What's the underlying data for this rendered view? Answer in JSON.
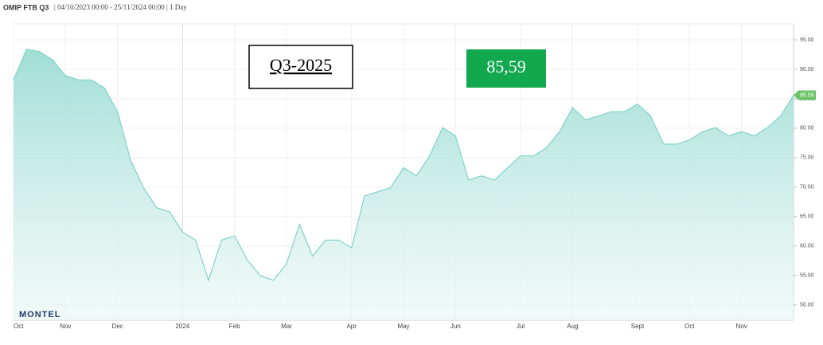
{
  "chart_data": {
    "type": "area",
    "title": "OMIP FTB Q3",
    "subtitle": "| 04/10/2023 00:00 - 25/11/2024 00:00 | 1 Day",
    "annotations": [
      "Q3-2025",
      "85,59"
    ],
    "logo": "MONTEL",
    "categories": [
      "Oct",
      null,
      null,
      null,
      "Nov",
      null,
      null,
      null,
      "Dec",
      null,
      null,
      null,
      null,
      "2024",
      null,
      null,
      null,
      "Feb",
      null,
      null,
      null,
      "Mar",
      null,
      null,
      null,
      null,
      "Apr",
      null,
      null,
      null,
      "May",
      null,
      null,
      null,
      "Jun",
      null,
      null,
      null,
      null,
      "Jul",
      null,
      null,
      null,
      "Aug",
      null,
      null,
      null,
      null,
      "Sept",
      null,
      null,
      null,
      "Oct",
      null,
      null,
      null,
      "Nov",
      null,
      null,
      null,
      null
    ],
    "series": [
      {
        "color": "#7fd3c8",
        "values": [
          88.2,
          93.4,
          93,
          91.6,
          88.9,
          88.2,
          88.2,
          86.8,
          82.8,
          74.6,
          69.9,
          66.5,
          65.8,
          62.4,
          61,
          54.2,
          61,
          61.7,
          57.6,
          54.9,
          54.2,
          57,
          63.7,
          58.3,
          61,
          61,
          59.7,
          68.5,
          69.2,
          69.9,
          73.3,
          71.9,
          75.3,
          80.1,
          78.7,
          71.2,
          71.9,
          71.2,
          73.3,
          75.3,
          75.3,
          76.7,
          79.4,
          83.5,
          81.4,
          82.1,
          82.8,
          82.8,
          84.1,
          82.1,
          77.3,
          77.3,
          78,
          79.4,
          80.1,
          78.7,
          79.4,
          78.7,
          80.1,
          82.1,
          85.59
        ]
      }
    ],
    "ylim": [
      47.4,
      97.7
    ],
    "yticks": [
      {
        "value": 50,
        "label": "50.00"
      },
      {
        "value": 55,
        "label": "55.00"
      },
      {
        "value": 60,
        "label": "60.00"
      },
      {
        "value": 65,
        "label": "65.00"
      },
      {
        "value": 70,
        "label": "70.00"
      },
      {
        "value": 75,
        "label": "75.00"
      },
      {
        "value": 80,
        "label": "80.00"
      },
      {
        "value": 85,
        "label": "85.00"
      },
      {
        "value": 90,
        "label": "90.00"
      },
      {
        "value": 95,
        "label": "95.00"
      }
    ],
    "grid": true
  }
}
